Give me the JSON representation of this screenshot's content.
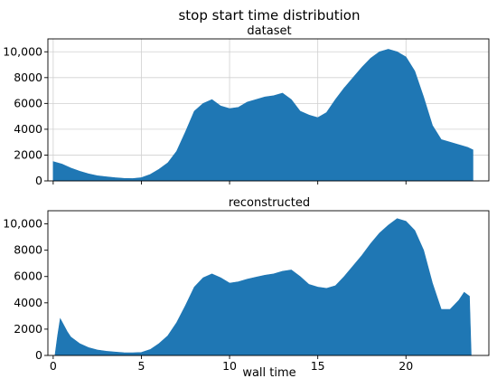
{
  "figure": {
    "title": "stop start time distribution",
    "xlabel": "wall time"
  },
  "chart_data": [
    {
      "type": "area",
      "title": "dataset",
      "x_ticks": [
        0,
        5,
        10,
        15,
        20
      ],
      "y_ticks": [
        0,
        2000,
        4000,
        6000,
        8000,
        10000
      ],
      "y_tick_labels": [
        "0",
        "2000",
        "4000",
        "6000",
        "8000",
        "10,000"
      ],
      "xlim": [
        -0.3,
        24.7
      ],
      "ylim": [
        0,
        11000
      ],
      "grid": true,
      "show_x_tick_labels": false,
      "color": "#1f77b4",
      "x": [
        0,
        0.5,
        1,
        1.5,
        2,
        2.5,
        3,
        3.5,
        4,
        4.5,
        5,
        5.5,
        6,
        6.5,
        7,
        7.5,
        8,
        8.5,
        9,
        9.5,
        10,
        10.5,
        11,
        11.5,
        12,
        12.5,
        13,
        13.5,
        14,
        14.5,
        15,
        15.5,
        16,
        16.5,
        17,
        17.5,
        18,
        18.5,
        19,
        19.5,
        20,
        20.5,
        21,
        21.5,
        22,
        22.5,
        23,
        23.5,
        23.8
      ],
      "values": [
        1500,
        1300,
        1000,
        750,
        550,
        400,
        320,
        250,
        200,
        180,
        250,
        500,
        900,
        1400,
        2300,
        3800,
        5400,
        6000,
        6300,
        5800,
        5600,
        5700,
        6100,
        6300,
        6500,
        6600,
        6800,
        6300,
        5400,
        5100,
        4900,
        5300,
        6300,
        7200,
        8000,
        8800,
        9500,
        10000,
        10200,
        10000,
        9600,
        8500,
        6500,
        4300,
        3200,
        3000,
        2800,
        2600,
        2400
      ]
    },
    {
      "type": "area",
      "title": "reconstructed",
      "x_ticks": [
        0,
        5,
        10,
        15,
        20
      ],
      "y_ticks": [
        0,
        2000,
        4000,
        6000,
        8000,
        10000
      ],
      "y_tick_labels": [
        "0",
        "2000",
        "4000",
        "6000",
        "8000",
        "10,000"
      ],
      "xlim": [
        -0.3,
        24.7
      ],
      "ylim": [
        0,
        11000
      ],
      "grid": false,
      "show_x_tick_labels": true,
      "color": "#1f77b4",
      "x": [
        0.1,
        0.25,
        0.4,
        0.6,
        0.8,
        1,
        1.5,
        2,
        2.5,
        3,
        3.5,
        4,
        4.5,
        5,
        5.5,
        6,
        6.5,
        7,
        7.5,
        8,
        8.5,
        9,
        9.5,
        10,
        10.5,
        11,
        11.5,
        12,
        12.5,
        13,
        13.5,
        14,
        14.5,
        15,
        15.5,
        16,
        16.5,
        17,
        17.5,
        18,
        18.5,
        19,
        19.5,
        20,
        20.5,
        21,
        21.5,
        22,
        22.5,
        23,
        23.3,
        23.6,
        23.7
      ],
      "values": [
        0,
        1500,
        2800,
        2300,
        1800,
        1400,
        900,
        600,
        420,
        320,
        260,
        210,
        200,
        230,
        450,
        900,
        1500,
        2500,
        3800,
        5200,
        5900,
        6200,
        5900,
        5500,
        5600,
        5800,
        5950,
        6100,
        6200,
        6400,
        6500,
        6000,
        5400,
        5200,
        5100,
        5300,
        6000,
        6800,
        7600,
        8500,
        9300,
        9900,
        10400,
        10200,
        9500,
        8000,
        5500,
        3500,
        3500,
        4200,
        4800,
        4500,
        0
      ]
    }
  ]
}
